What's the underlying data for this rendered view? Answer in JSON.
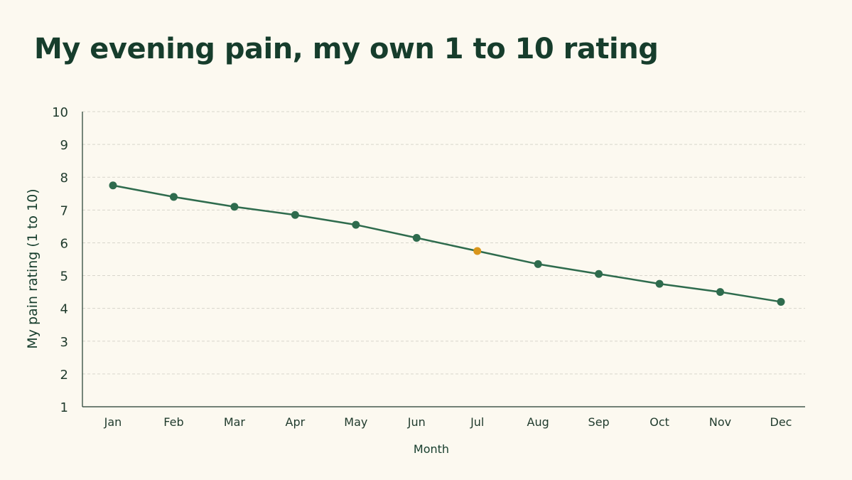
{
  "chart_data": {
    "type": "line",
    "title": "My evening pain, my own 1 to 10 rating",
    "xlabel": "Month",
    "ylabel": "My pain rating (1 to 10)",
    "categories": [
      "Jan",
      "Feb",
      "Mar",
      "Apr",
      "May",
      "Jun",
      "Jul",
      "Aug",
      "Sep",
      "Oct",
      "Nov",
      "Dec"
    ],
    "series": [
      {
        "values": [
          7.75,
          7.4,
          7.1,
          6.85,
          6.55,
          6.15,
          5.75,
          5.35,
          5.05,
          4.75,
          4.5,
          4.2
        ]
      }
    ],
    "highlight_index": 6,
    "ylim": [
      1,
      10
    ],
    "yticks": [
      1,
      2,
      3,
      4,
      5,
      6,
      7,
      8,
      9,
      10
    ],
    "grid": true,
    "colors": {
      "line": "#2e6b4d",
      "point": "#2e6b4d",
      "highlight": "#d9961c",
      "grid": "#d8d6cc",
      "axis": "#1f3a2c"
    }
  }
}
